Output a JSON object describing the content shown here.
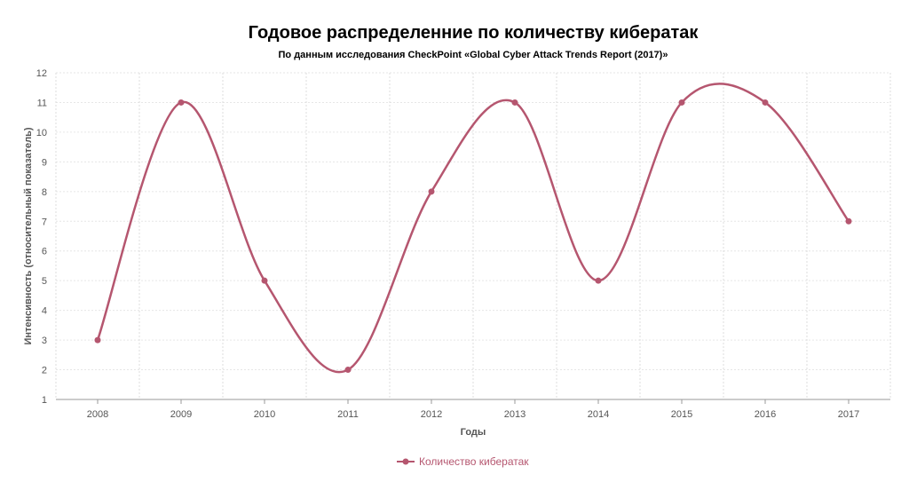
{
  "chart_data": {
    "type": "line",
    "title": "Годовое распределенние по количеству кибератак",
    "subtitle": "По данным исследования CheckPoint «Global Cyber Attack Trends Report (2017)»",
    "xlabel": "Годы",
    "ylabel": "Интенсивность (относительный показатель)",
    "categories": [
      "2008",
      "2009",
      "2010",
      "2011",
      "2012",
      "2013",
      "2014",
      "2015",
      "2016",
      "2017"
    ],
    "series": [
      {
        "name": "Количество кибератак",
        "values": [
          3,
          11,
          5,
          2,
          8,
          11,
          5,
          11,
          11,
          7
        ],
        "color": "#b5566f"
      }
    ],
    "ylim": [
      1,
      12
    ],
    "yticks": [
      "1",
      "2",
      "3",
      "4",
      "5",
      "6",
      "7",
      "8",
      "9",
      "10",
      "11",
      "12"
    ],
    "grid": true,
    "legend_position": "bottom-center"
  }
}
